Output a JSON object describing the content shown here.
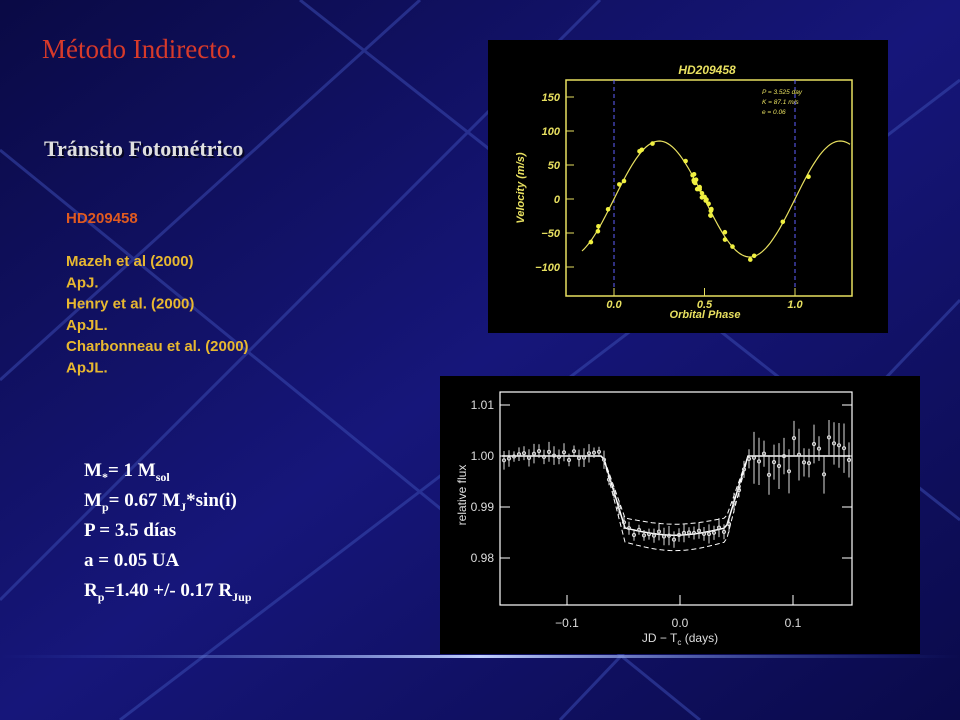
{
  "slide": {
    "title": "Método Indirecto.",
    "subtitle": "Tránsito Fotométrico",
    "star": "HD209458",
    "references": [
      "Mazeh et al (2000)",
      "ApJ.",
      "Henry et al. (2000)",
      "ApJL.",
      "Charbonneau et al. (2000)",
      "ApJL."
    ],
    "parameters": [
      [
        "M",
        "*",
        "= 1 M",
        "sol"
      ],
      [
        "M",
        "p",
        "= 0.67 M",
        "J",
        "*sin(i)"
      ],
      [
        "P = 3.5 días"
      ],
      [
        "a = 0.05 UA"
      ],
      [
        "R",
        "p",
        "=1.40 +/- 0.17 R",
        "Jup"
      ]
    ]
  },
  "velocity_plot": {
    "title": "HD209458",
    "xlabel": "Orbital Phase",
    "ylabel": "Velocity (m/s)",
    "annotations": [
      "P = 3.525 day",
      "K = 87.1 m/s",
      "e = 0.06"
    ],
    "yticks": [
      "150",
      "100",
      "50",
      "0",
      "−50",
      "−100"
    ],
    "xticks": [
      "0.0",
      "0.5",
      "1.0"
    ]
  },
  "flux_plot": {
    "ylabel": "relative flux",
    "xlabel": [
      "JD − T",
      "c",
      " (days)"
    ],
    "yticks": [
      "1.01",
      "1.00",
      "0.99",
      "0.98"
    ],
    "xticks": [
      "−0.1",
      "0.0",
      "0.1"
    ]
  }
}
